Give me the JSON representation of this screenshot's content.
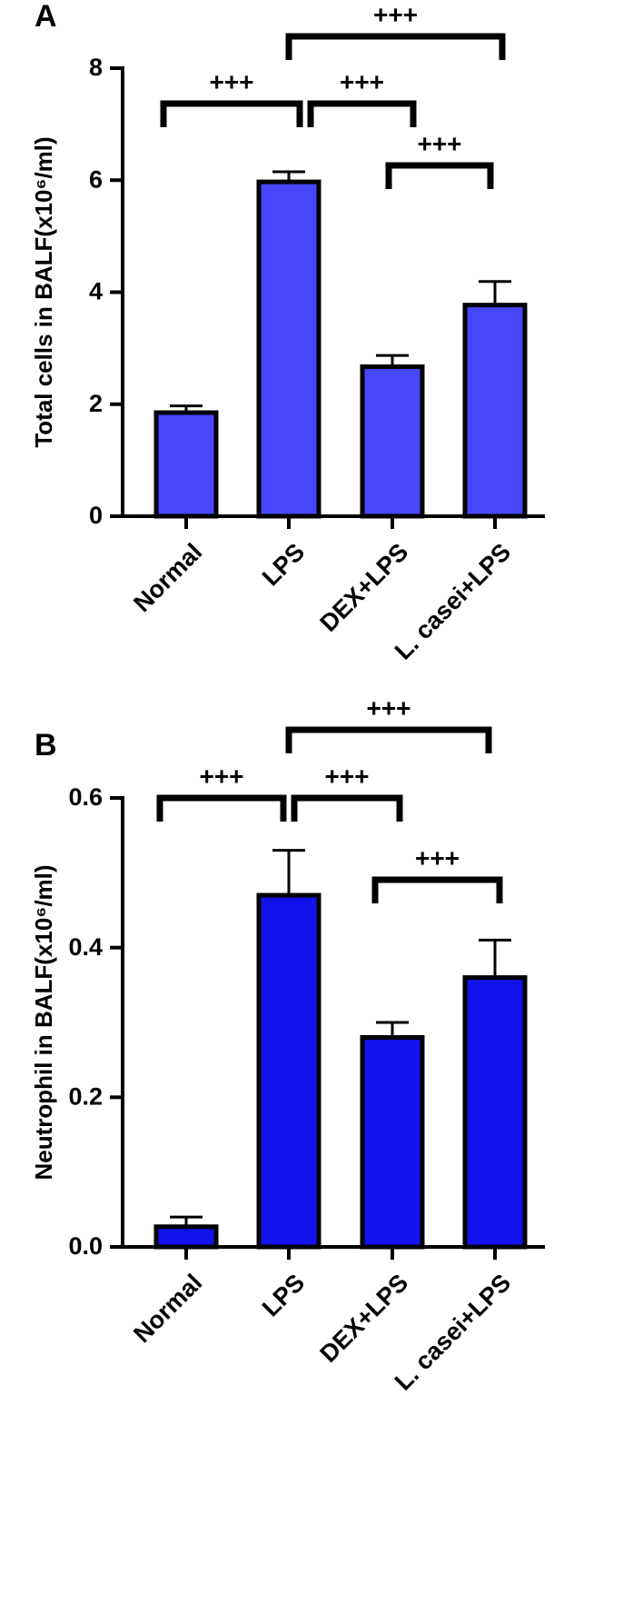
{
  "chart_data": [
    {
      "type": "bar",
      "label": "A",
      "y_label": "Total cells in BALF(x10⁶/ml)",
      "categories": [
        "Normal",
        "LPS",
        "DEX+LPS",
        "L. casei+LPS"
      ],
      "values": [
        1.85,
        5.97,
        2.67,
        3.77
      ],
      "errors": [
        0.12,
        0.18,
        0.2,
        0.42
      ],
      "color": "#4646fa",
      "ylim": [
        0,
        8
      ],
      "yticks": [
        0,
        2,
        4,
        6,
        8
      ],
      "annotations": [
        {
          "text": "+++",
          "between": [
            0,
            1
          ]
        },
        {
          "text": "+++",
          "between": [
            1,
            2
          ]
        },
        {
          "text": "+++",
          "between": [
            1,
            3
          ]
        },
        {
          "text": "+++",
          "between": [
            2,
            3
          ]
        }
      ]
    },
    {
      "type": "bar",
      "label": "B",
      "y_label": "Neutrophil in BALF(x10⁶/ml)",
      "categories": [
        "Normal",
        "LPS",
        "DEX+LPS",
        "L. casei+LPS"
      ],
      "values": [
        0.027,
        0.47,
        0.28,
        0.36
      ],
      "errors": [
        0.013,
        0.06,
        0.02,
        0.05
      ],
      "color": "#1212ec",
      "ylim": [
        0,
        0.6
      ],
      "yticks": [
        {
          "value": 0,
          "label": "0.0"
        },
        0.2,
        0.4,
        0.6
      ],
      "annotations": [
        {
          "text": "+++",
          "between": [
            0,
            1
          ]
        },
        {
          "text": "+++",
          "between": [
            1,
            2
          ]
        },
        {
          "text": "+++",
          "between": [
            1,
            3
          ]
        },
        {
          "text": "+++",
          "between": [
            2,
            3
          ]
        }
      ]
    }
  ]
}
